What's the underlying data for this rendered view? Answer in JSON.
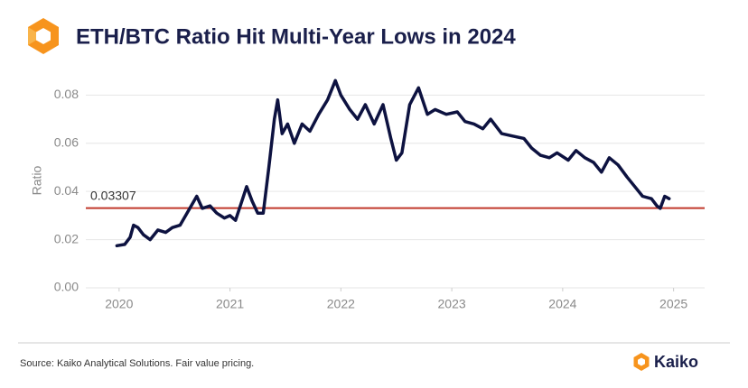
{
  "chart_data": {
    "type": "line",
    "title": "ETH/BTC Ratio Hit Multi-Year Lows in 2024",
    "ylabel": "Ratio",
    "source": "Source: Kaiko Analytical Solutions. Fair value pricing.",
    "brand": "Kaiko",
    "x": [
      2019.98,
      2020.05,
      2020.1,
      2020.13,
      2020.17,
      2020.22,
      2020.28,
      2020.35,
      2020.42,
      2020.48,
      2020.55,
      2020.6,
      2020.65,
      2020.7,
      2020.75,
      2020.82,
      2020.88,
      2020.95,
      2021.0,
      2021.05,
      2021.1,
      2021.15,
      2021.2,
      2021.25,
      2021.3,
      2021.35,
      2021.4,
      2021.43,
      2021.47,
      2021.52,
      2021.58,
      2021.65,
      2021.72,
      2021.8,
      2021.88,
      2021.95,
      2022.0,
      2022.08,
      2022.15,
      2022.22,
      2022.3,
      2022.38,
      2022.45,
      2022.5,
      2022.55,
      2022.62,
      2022.7,
      2022.78,
      2022.85,
      2022.95,
      2023.05,
      2023.12,
      2023.2,
      2023.28,
      2023.35,
      2023.45,
      2023.55,
      2023.65,
      2023.72,
      2023.8,
      2023.88,
      2023.95,
      2024.05,
      2024.12,
      2024.2,
      2024.28,
      2024.35,
      2024.42,
      2024.5,
      2024.58,
      2024.65,
      2024.72,
      2024.8,
      2024.85,
      2024.88,
      2024.92,
      2024.96
    ],
    "series": [
      {
        "name": "ETH/BTC",
        "color": "#0d1240",
        "values": [
          0.0175,
          0.018,
          0.021,
          0.026,
          0.025,
          0.022,
          0.02,
          0.024,
          0.023,
          0.025,
          0.026,
          0.03,
          0.034,
          0.038,
          0.033,
          0.034,
          0.031,
          0.029,
          0.03,
          0.028,
          0.035,
          0.042,
          0.036,
          0.031,
          0.031,
          0.05,
          0.07,
          0.078,
          0.064,
          0.068,
          0.06,
          0.068,
          0.065,
          0.072,
          0.078,
          0.086,
          0.08,
          0.074,
          0.07,
          0.076,
          0.068,
          0.076,
          0.062,
          0.053,
          0.056,
          0.076,
          0.083,
          0.072,
          0.074,
          0.072,
          0.073,
          0.069,
          0.068,
          0.066,
          0.07,
          0.064,
          0.063,
          0.062,
          0.058,
          0.055,
          0.054,
          0.056,
          0.053,
          0.057,
          0.054,
          0.052,
          0.048,
          0.054,
          0.051,
          0.046,
          0.042,
          0.038,
          0.037,
          0.034,
          0.033,
          0.038,
          0.037
        ]
      }
    ],
    "reference_line": {
      "value": 0.03307,
      "color": "#c0392b"
    },
    "xlim": [
      2019.7,
      2025.28
    ],
    "xticks": [
      2020,
      2021,
      2022,
      2023,
      2024,
      2025
    ],
    "ylim": [
      0,
      0.085
    ],
    "yticks": [
      {
        "value": 0,
        "label": "0.00"
      },
      {
        "value": 0.02,
        "label": "0.02"
      },
      {
        "value": 0.04,
        "label": "0.04"
      },
      {
        "value": 0.06,
        "label": "0.06"
      },
      {
        "value": 0.08,
        "label": "0.08"
      }
    ],
    "grid": true
  }
}
